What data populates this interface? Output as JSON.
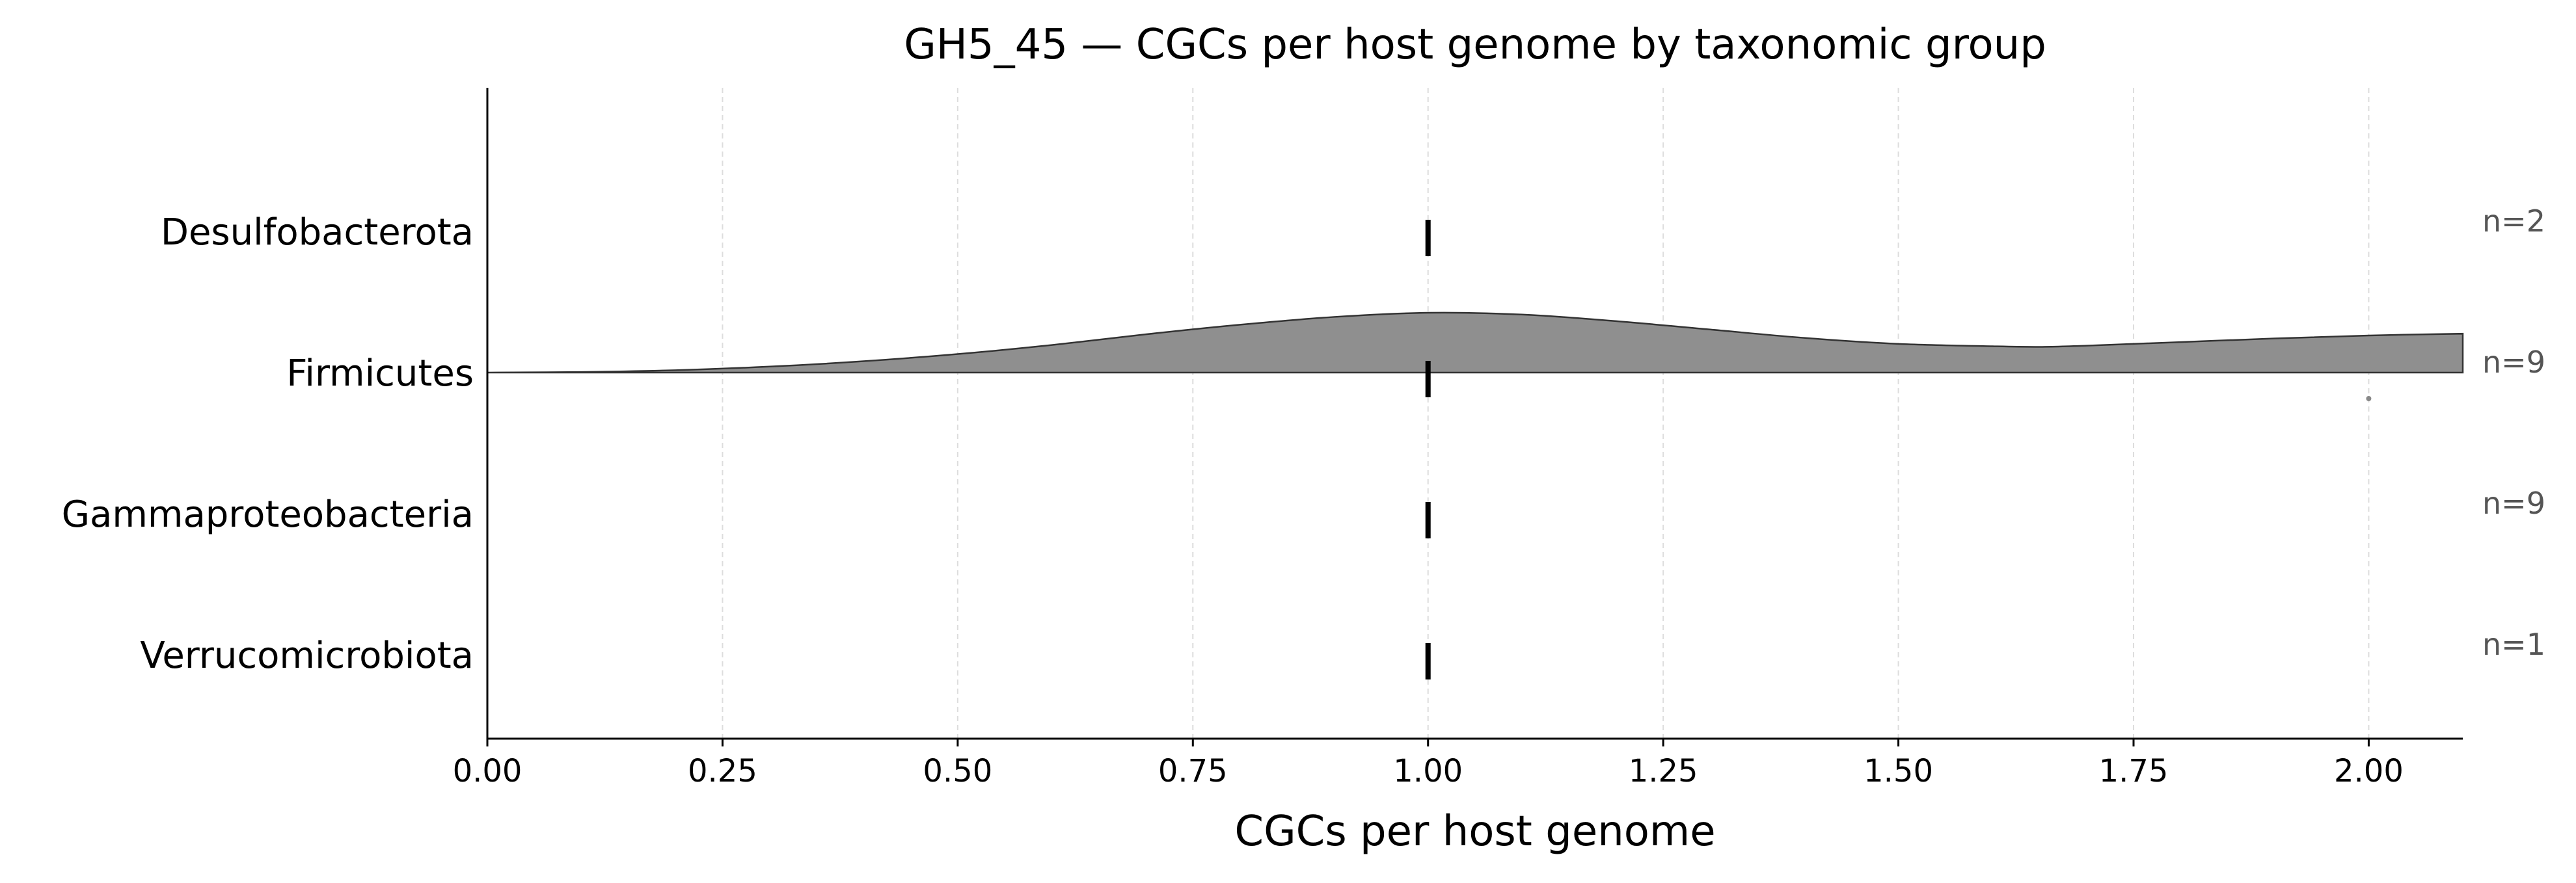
{
  "chart_data": {
    "type": "ridgeline",
    "title": "GH5_45 — CGCs per host genome by taxonomic group",
    "xlabel": "CGCs per host genome",
    "ylabel": "",
    "xlim": [
      0,
      2.1
    ],
    "xticks": [
      "0.00",
      "0.25",
      "0.50",
      "0.75",
      "1.00",
      "1.25",
      "1.50",
      "1.75",
      "2.00"
    ],
    "grid": "x",
    "groups": [
      {
        "name": "Desulfobacterota",
        "n_label": "n=2",
        "median": 1.0,
        "values": [
          1,
          1
        ]
      },
      {
        "name": "Firmicutes",
        "n_label": "n=9",
        "median": 1.0,
        "values": [
          1,
          1,
          1,
          1,
          1,
          1,
          1,
          1,
          2
        ],
        "density": {
          "x": [
            0,
            0.1,
            0.2,
            0.3,
            0.4,
            0.5,
            0.6,
            0.7,
            0.8,
            0.9,
            1.0,
            1.1,
            1.2,
            1.3,
            1.4,
            1.5,
            1.6,
            1.65,
            1.7,
            1.8,
            1.9,
            2.0,
            2.1
          ],
          "y": [
            0.0,
            0.01,
            0.04,
            0.1,
            0.19,
            0.31,
            0.46,
            0.64,
            0.8,
            0.93,
            1.0,
            0.97,
            0.86,
            0.72,
            0.58,
            0.48,
            0.44,
            0.43,
            0.45,
            0.51,
            0.57,
            0.62,
            0.65
          ]
        },
        "outliers": [
          2.0
        ]
      },
      {
        "name": "Gammaproteobacteria",
        "n_label": "n=9",
        "median": 1.0,
        "values": [
          1,
          1,
          1,
          1,
          1,
          1,
          1,
          1,
          1
        ]
      },
      {
        "name": "Verrucomicrobiota",
        "n_label": "n=1",
        "median": 1.0,
        "values": [
          1
        ]
      }
    ],
    "colors": {
      "fill": "#8f8f8f",
      "edge": "#333333",
      "median": "#000000",
      "outlier": "#888888",
      "grid": "#dddddd"
    }
  }
}
